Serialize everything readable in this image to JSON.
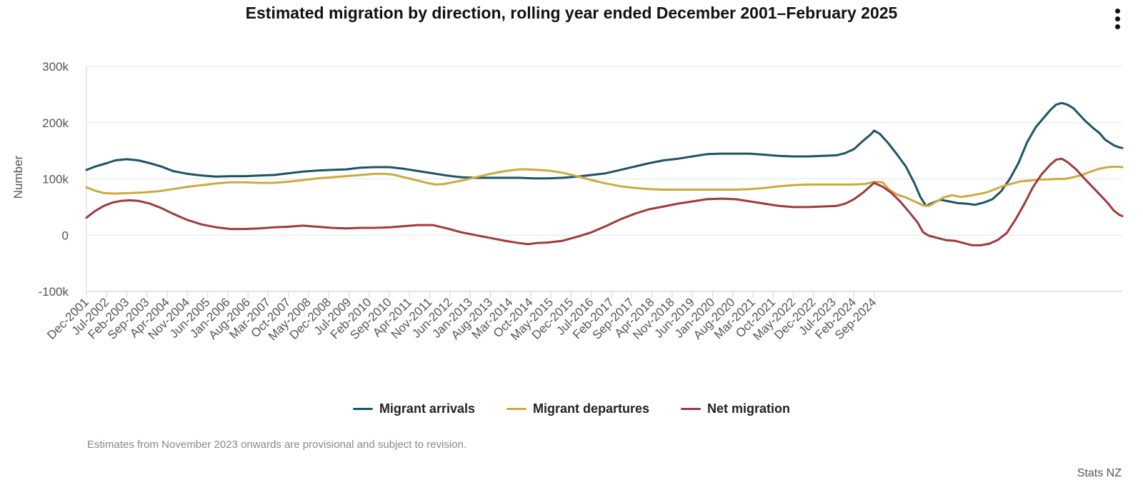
{
  "menu": {
    "icon": "more-vertical-icon"
  },
  "footnote": "Estimates from November 2023 onwards are provisional and subject to revision.",
  "credit": "Stats NZ",
  "colors": {
    "arrivals": "#1d5366",
    "departures": "#cdaa3d",
    "net": "#a2393a",
    "grid": "#dde3ea",
    "axis": "#cfd8e3"
  },
  "chart_data": {
    "type": "line",
    "title": "Estimated migration by direction, rolling year ended December 2001–February 2025",
    "ylabel": "Number",
    "xlabel": "",
    "ylim": [
      -100000,
      300000
    ],
    "yticks": [
      -100000,
      0,
      100000,
      200000,
      300000
    ],
    "ytick_labels": [
      "-100k",
      "0",
      "100k",
      "200k",
      "300k"
    ],
    "x_start": "Dec-2001",
    "x_end": "Feb-2025",
    "x_period_months": 279,
    "xtick_labels": [
      "Dec-2001",
      "Jul-2002",
      "Feb-2003",
      "Sep-2003",
      "Apr-2004",
      "Nov-2004",
      "Jun-2005",
      "Jan-2006",
      "Aug-2006",
      "Mar-2007",
      "Oct-2007",
      "May-2008",
      "Dec-2008",
      "Jul-2009",
      "Feb-2010",
      "Sep-2010",
      "Apr-2011",
      "Nov-2011",
      "Jun-2012",
      "Jan-2013",
      "Aug-2013",
      "Mar-2014",
      "Oct-2014",
      "May-2015",
      "Dec-2015",
      "Jul-2016",
      "Feb-2017",
      "Sep-2017",
      "Apr-2018",
      "Nov-2018",
      "Jun-2019",
      "Jan-2020",
      "Aug-2020",
      "Mar-2021",
      "Oct-2021",
      "May-2022",
      "Dec-2022",
      "Jul-2023",
      "Feb-2024",
      "Sep-2024"
    ],
    "legend_position": "bottom-center",
    "series": [
      {
        "name": "Migrant arrivals",
        "color_key": "arrivals",
        "points": [
          [
            0,
            116000
          ],
          [
            3,
            122000
          ],
          [
            7,
            128000
          ],
          [
            10,
            133000
          ],
          [
            14,
            135000
          ],
          [
            18,
            133000
          ],
          [
            22,
            128000
          ],
          [
            26,
            122000
          ],
          [
            30,
            114000
          ],
          [
            35,
            109000
          ],
          [
            40,
            106000
          ],
          [
            45,
            104000
          ],
          [
            50,
            105000
          ],
          [
            55,
            105000
          ],
          [
            60,
            106000
          ],
          [
            65,
            107000
          ],
          [
            70,
            110000
          ],
          [
            75,
            113000
          ],
          [
            80,
            115000
          ],
          [
            85,
            116000
          ],
          [
            90,
            117000
          ],
          [
            95,
            120000
          ],
          [
            100,
            121000
          ],
          [
            105,
            121000
          ],
          [
            110,
            118000
          ],
          [
            115,
            114000
          ],
          [
            120,
            110000
          ],
          [
            125,
            106000
          ],
          [
            130,
            103000
          ],
          [
            135,
            102000
          ],
          [
            140,
            102000
          ],
          [
            145,
            102000
          ],
          [
            150,
            102000
          ],
          [
            155,
            101000
          ],
          [
            160,
            101000
          ],
          [
            165,
            102000
          ],
          [
            170,
            104000
          ],
          [
            175,
            107000
          ],
          [
            180,
            110000
          ],
          [
            185,
            116000
          ],
          [
            190,
            122000
          ],
          [
            195,
            128000
          ],
          [
            200,
            133000
          ],
          [
            205,
            136000
          ],
          [
            210,
            140000
          ],
          [
            215,
            144000
          ],
          [
            220,
            145000
          ],
          [
            225,
            145000
          ],
          [
            230,
            145000
          ],
          [
            235,
            143000
          ],
          [
            240,
            141000
          ],
          [
            245,
            140000
          ],
          [
            250,
            140000
          ],
          [
            255,
            141000
          ],
          [
            260,
            142000
          ],
          [
            263,
            146000
          ],
          [
            266,
            153000
          ],
          [
            269,
            167000
          ],
          [
            272,
            180000
          ],
          [
            273,
            186000
          ],
          [
            275,
            180000
          ],
          [
            278,
            163000
          ],
          [
            281,
            143000
          ],
          [
            284,
            122000
          ],
          [
            287,
            92000
          ],
          [
            289,
            68000
          ],
          [
            291,
            52000
          ],
          [
            293,
            57000
          ],
          [
            296,
            63000
          ],
          [
            299,
            60000
          ],
          [
            302,
            57000
          ],
          [
            305,
            56000
          ],
          [
            308,
            54000
          ],
          [
            311,
            58000
          ],
          [
            314,
            64000
          ],
          [
            317,
            78000
          ],
          [
            320,
            100000
          ],
          [
            323,
            128000
          ],
          [
            326,
            165000
          ],
          [
            329,
            192000
          ],
          [
            332,
            210000
          ],
          [
            334,
            222000
          ],
          [
            336,
            232000
          ],
          [
            338,
            235000
          ],
          [
            340,
            232000
          ],
          [
            342,
            226000
          ],
          [
            344,
            215000
          ],
          [
            346,
            204000
          ],
          [
            349,
            190000
          ],
          [
            351,
            182000
          ],
          [
            353,
            170000
          ],
          [
            356,
            160000
          ],
          [
            358,
            156000
          ],
          [
            359,
            155000
          ]
        ]
      },
      {
        "name": "Migrant departures",
        "color_key": "departures",
        "points": [
          [
            0,
            85000
          ],
          [
            3,
            79000
          ],
          [
            6,
            75000
          ],
          [
            10,
            74000
          ],
          [
            15,
            75000
          ],
          [
            20,
            76000
          ],
          [
            25,
            78000
          ],
          [
            30,
            82000
          ],
          [
            35,
            86000
          ],
          [
            40,
            89000
          ],
          [
            45,
            92000
          ],
          [
            50,
            94000
          ],
          [
            55,
            94000
          ],
          [
            60,
            93000
          ],
          [
            65,
            93000
          ],
          [
            70,
            95000
          ],
          [
            75,
            98000
          ],
          [
            80,
            101000
          ],
          [
            85,
            103000
          ],
          [
            90,
            105000
          ],
          [
            95,
            107000
          ],
          [
            100,
            109000
          ],
          [
            103,
            109000
          ],
          [
            106,
            108000
          ],
          [
            110,
            103000
          ],
          [
            115,
            97000
          ],
          [
            118,
            93000
          ],
          [
            121,
            90000
          ],
          [
            124,
            91000
          ],
          [
            127,
            94000
          ],
          [
            130,
            97000
          ],
          [
            135,
            103000
          ],
          [
            140,
            109000
          ],
          [
            145,
            114000
          ],
          [
            150,
            117000
          ],
          [
            153,
            117000
          ],
          [
            156,
            116000
          ],
          [
            160,
            115000
          ],
          [
            165,
            111000
          ],
          [
            170,
            105000
          ],
          [
            175,
            98000
          ],
          [
            180,
            92000
          ],
          [
            185,
            87000
          ],
          [
            190,
            84000
          ],
          [
            195,
            82000
          ],
          [
            200,
            81000
          ],
          [
            205,
            81000
          ],
          [
            210,
            81000
          ],
          [
            215,
            81000
          ],
          [
            220,
            81000
          ],
          [
            225,
            81000
          ],
          [
            230,
            82000
          ],
          [
            235,
            84000
          ],
          [
            240,
            87000
          ],
          [
            245,
            89000
          ],
          [
            250,
            90000
          ],
          [
            255,
            90000
          ],
          [
            260,
            90000
          ],
          [
            265,
            90000
          ],
          [
            270,
            91000
          ],
          [
            273,
            95000
          ],
          [
            276,
            94000
          ],
          [
            278,
            82000
          ],
          [
            281,
            72000
          ],
          [
            284,
            67000
          ],
          [
            287,
            60000
          ],
          [
            290,
            53000
          ],
          [
            292,
            52000
          ],
          [
            294,
            58000
          ],
          [
            297,
            67000
          ],
          [
            300,
            71000
          ],
          [
            303,
            68000
          ],
          [
            306,
            70000
          ],
          [
            309,
            73000
          ],
          [
            312,
            76000
          ],
          [
            315,
            82000
          ],
          [
            318,
            88000
          ],
          [
            321,
            92000
          ],
          [
            324,
            96000
          ],
          [
            327,
            97000
          ],
          [
            330,
            99000
          ],
          [
            333,
            99000
          ],
          [
            336,
            100000
          ],
          [
            339,
            100000
          ],
          [
            342,
            103000
          ],
          [
            345,
            107000
          ],
          [
            348,
            113000
          ],
          [
            351,
            118000
          ],
          [
            354,
            121000
          ],
          [
            357,
            122000
          ],
          [
            359,
            121000
          ]
        ]
      },
      {
        "name": "Net migration",
        "color_key": "net",
        "points": [
          [
            0,
            31000
          ],
          [
            3,
            43000
          ],
          [
            6,
            52000
          ],
          [
            9,
            58000
          ],
          [
            12,
            61000
          ],
          [
            15,
            62000
          ],
          [
            18,
            61000
          ],
          [
            22,
            56000
          ],
          [
            26,
            48000
          ],
          [
            30,
            38000
          ],
          [
            35,
            27000
          ],
          [
            40,
            19000
          ],
          [
            45,
            14000
          ],
          [
            50,
            11000
          ],
          [
            55,
            11000
          ],
          [
            60,
            12000
          ],
          [
            65,
            14000
          ],
          [
            70,
            15000
          ],
          [
            75,
            17000
          ],
          [
            80,
            15000
          ],
          [
            85,
            13000
          ],
          [
            90,
            12000
          ],
          [
            95,
            13000
          ],
          [
            100,
            13000
          ],
          [
            105,
            14000
          ],
          [
            110,
            16000
          ],
          [
            115,
            18000
          ],
          [
            120,
            18000
          ],
          [
            125,
            12000
          ],
          [
            130,
            5000
          ],
          [
            135,
            0
          ],
          [
            140,
            -5000
          ],
          [
            145,
            -10000
          ],
          [
            150,
            -14000
          ],
          [
            153,
            -16000
          ],
          [
            156,
            -14000
          ],
          [
            160,
            -13000
          ],
          [
            165,
            -10000
          ],
          [
            170,
            -3000
          ],
          [
            175,
            5000
          ],
          [
            180,
            16000
          ],
          [
            185,
            28000
          ],
          [
            190,
            38000
          ],
          [
            195,
            46000
          ],
          [
            200,
            51000
          ],
          [
            205,
            56000
          ],
          [
            210,
            60000
          ],
          [
            215,
            64000
          ],
          [
            220,
            65000
          ],
          [
            225,
            64000
          ],
          [
            230,
            60000
          ],
          [
            235,
            56000
          ],
          [
            240,
            52000
          ],
          [
            245,
            50000
          ],
          [
            250,
            50000
          ],
          [
            255,
            51000
          ],
          [
            260,
            52000
          ],
          [
            263,
            56000
          ],
          [
            266,
            64000
          ],
          [
            269,
            75000
          ],
          [
            271,
            84000
          ],
          [
            273,
            93000
          ],
          [
            276,
            86000
          ],
          [
            279,
            75000
          ],
          [
            282,
            60000
          ],
          [
            285,
            42000
          ],
          [
            288,
            23000
          ],
          [
            290,
            5000
          ],
          [
            292,
            -1000
          ],
          [
            295,
            -5000
          ],
          [
            298,
            -9000
          ],
          [
            301,
            -10000
          ],
          [
            304,
            -14000
          ],
          [
            307,
            -18000
          ],
          [
            310,
            -18000
          ],
          [
            313,
            -15000
          ],
          [
            316,
            -8000
          ],
          [
            319,
            4000
          ],
          [
            322,
            28000
          ],
          [
            325,
            55000
          ],
          [
            328,
            85000
          ],
          [
            331,
            108000
          ],
          [
            334,
            125000
          ],
          [
            336,
            134000
          ],
          [
            338,
            136000
          ],
          [
            340,
            130000
          ],
          [
            343,
            117000
          ],
          [
            346,
            100000
          ],
          [
            349,
            84000
          ],
          [
            352,
            68000
          ],
          [
            354,
            57000
          ],
          [
            356,
            44000
          ],
          [
            358,
            36000
          ],
          [
            359,
            34000
          ]
        ]
      }
    ]
  }
}
